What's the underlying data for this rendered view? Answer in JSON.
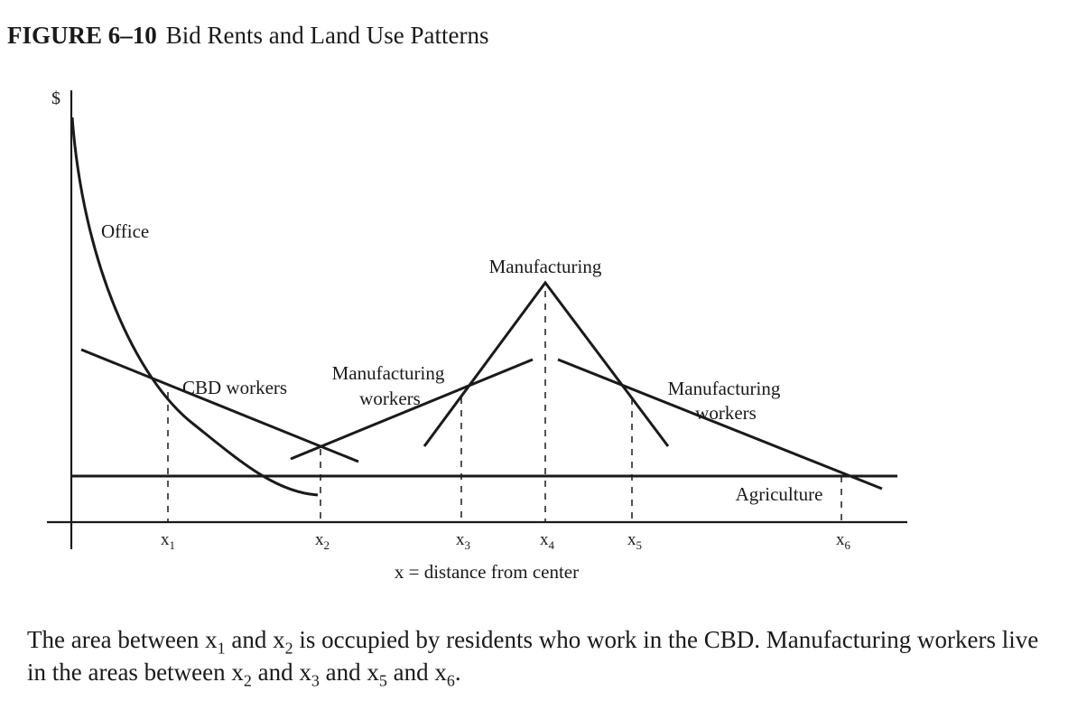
{
  "figure": {
    "number": "FIGURE 6–10",
    "title": "Bid Rents and Land Use Patterns"
  },
  "axes": {
    "y_label": "$",
    "x_label": "x = distance from center",
    "ticks": [
      {
        "base": "x",
        "sub": "1"
      },
      {
        "base": "x",
        "sub": "2"
      },
      {
        "base": "x",
        "sub": "3"
      },
      {
        "base": "x",
        "sub": "4"
      },
      {
        "base": "x",
        "sub": "5"
      },
      {
        "base": "x",
        "sub": "6"
      }
    ]
  },
  "curve_labels": {
    "office": "Office",
    "cbd_workers": "CBD workers",
    "manufacturing": "Manufacturing",
    "mfg_workers_left_1": "Manufacturing",
    "mfg_workers_left_2": "workers",
    "mfg_workers_right_1": "Manufacturing",
    "mfg_workers_right_2": "workers",
    "agriculture": "Agriculture"
  },
  "caption": {
    "p1": "The area between ",
    "x1": "x",
    "s1": "1",
    "p2": " and ",
    "x2": "x",
    "s2": "2",
    "p3": " is occupied by residents who work in the CBD. Manufacturing workers live in the areas between ",
    "x3": "x",
    "s3": "2",
    "p4": " and ",
    "x4": "x",
    "s4": "3",
    "p5": " and ",
    "x5": "x",
    "s5": "5",
    "p6": " and ",
    "x6": "x",
    "s6": "6",
    "p7": "."
  }
}
